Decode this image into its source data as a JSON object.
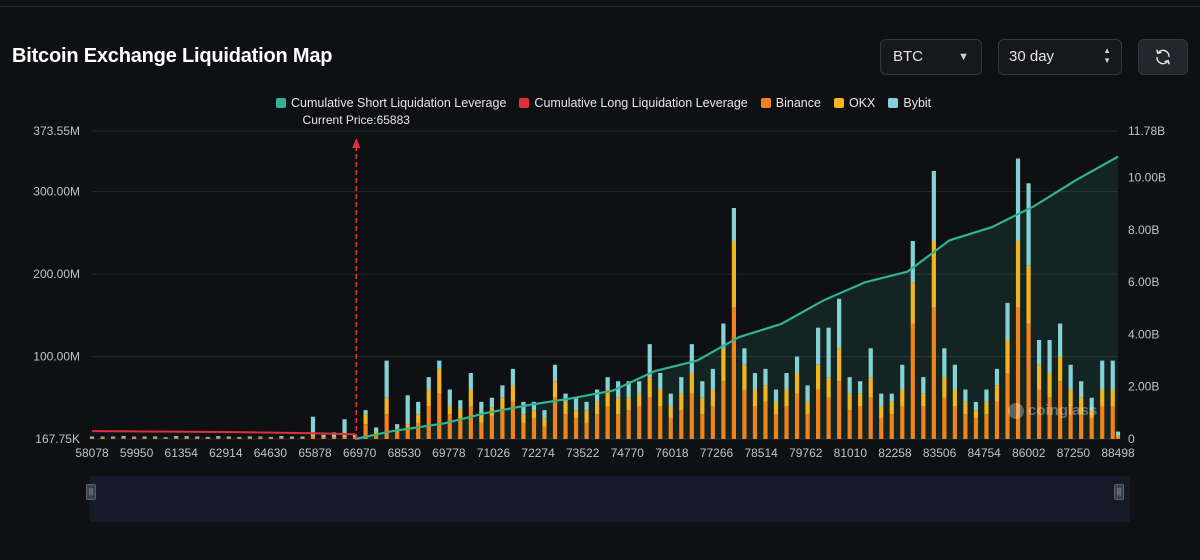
{
  "header": {
    "title": "Bitcoin Exchange Liquidation Map",
    "coin_select": "BTC",
    "range_select": "30 day",
    "refresh_icon": "refresh-icon"
  },
  "watermark": "coinglass",
  "colors": {
    "short": "#2fb390",
    "long": "#e0303b",
    "binance": "#f0841a",
    "okx": "#f2b51e",
    "bybit": "#84d2d6",
    "background": "#0f1013"
  },
  "chart_data": {
    "type": "bar",
    "title": "Bitcoin Exchange Liquidation Map",
    "current_price": 65883,
    "current_price_label": "Current Price:65883",
    "legend": [
      {
        "name": "Cumulative Short Liquidation Leverage",
        "color": "#2fb390"
      },
      {
        "name": "Cumulative Long Liquidation Leverage",
        "color": "#e0303b"
      },
      {
        "name": "Binance",
        "color": "#f0841a"
      },
      {
        "name": "OKX",
        "color": "#f2b51e"
      },
      {
        "name": "Bybit",
        "color": "#84d2d6"
      }
    ],
    "x_range": [
      58078,
      88498
    ],
    "x_tick_labels": [
      "58078",
      "59950",
      "61354",
      "62914",
      "64630",
      "65878",
      "66970",
      "68530",
      "69778",
      "71026",
      "72274",
      "73522",
      "74770",
      "76018",
      "77266",
      "78514",
      "79762",
      "81010",
      "82258",
      "83506",
      "84754",
      "86002",
      "87250",
      "88498"
    ],
    "y_left_range": [
      0.16775,
      373.55
    ],
    "y_left_ticks": [
      {
        "value": 0.16775,
        "label": "167.75K"
      },
      {
        "value": 100,
        "label": "100.00M"
      },
      {
        "value": 200,
        "label": "200.00M"
      },
      {
        "value": 300,
        "label": "300.00M"
      },
      {
        "value": 373.55,
        "label": "373.55M"
      }
    ],
    "y_right_range": [
      0,
      11.78
    ],
    "y_right_ticks": [
      {
        "value": 0,
        "label": "0"
      },
      {
        "value": 2,
        "label": "2.00B"
      },
      {
        "value": 4,
        "label": "4.00B"
      },
      {
        "value": 6,
        "label": "6.00B"
      },
      {
        "value": 8,
        "label": "8.00B"
      },
      {
        "value": 10,
        "label": "10.00B"
      },
      {
        "value": 11.78,
        "label": "11.78B"
      }
    ],
    "long_cumulative": [
      {
        "price": 58078,
        "value": 0.3
      },
      {
        "price": 62000,
        "value": 0.27
      },
      {
        "price": 64630,
        "value": 0.22
      },
      {
        "price": 65878,
        "value": 0.18
      }
    ],
    "short_cumulative": [
      {
        "price": 65883,
        "value": 0.0
      },
      {
        "price": 66970,
        "value": 0.3
      },
      {
        "price": 68530,
        "value": 0.6
      },
      {
        "price": 69778,
        "value": 1.0
      },
      {
        "price": 71026,
        "value": 1.3
      },
      {
        "price": 72274,
        "value": 1.55
      },
      {
        "price": 73522,
        "value": 1.85
      },
      {
        "price": 74770,
        "value": 2.6
      },
      {
        "price": 76018,
        "value": 3.0
      },
      {
        "price": 77266,
        "value": 3.9
      },
      {
        "price": 78514,
        "value": 4.4
      },
      {
        "price": 79762,
        "value": 5.3
      },
      {
        "price": 81010,
        "value": 6.0
      },
      {
        "price": 82258,
        "value": 6.4
      },
      {
        "price": 83506,
        "value": 7.6
      },
      {
        "price": 84754,
        "value": 8.1
      },
      {
        "price": 86002,
        "value": 8.9
      },
      {
        "price": 87250,
        "value": 9.9
      },
      {
        "price": 88498,
        "value": 10.8
      }
    ],
    "bars": [
      {
        "price": 58078,
        "binance": 1,
        "okx": 0.5,
        "bybit": 1.5
      },
      {
        "price": 58390,
        "binance": 1.5,
        "okx": 0.5,
        "bybit": 1
      },
      {
        "price": 58702,
        "binance": 1,
        "okx": 1,
        "bybit": 1
      },
      {
        "price": 59014,
        "binance": 1,
        "okx": 0.5,
        "bybit": 2
      },
      {
        "price": 59326,
        "binance": 1.5,
        "okx": 0.5,
        "bybit": 1
      },
      {
        "price": 59638,
        "binance": 1,
        "okx": 0.5,
        "bybit": 1.5
      },
      {
        "price": 59950,
        "binance": 1,
        "okx": 1,
        "bybit": 1
      },
      {
        "price": 60262,
        "binance": 0.5,
        "okx": 0.5,
        "bybit": 1
      },
      {
        "price": 60574,
        "binance": 1,
        "okx": 0.5,
        "bybit": 2
      },
      {
        "price": 60886,
        "binance": 1.5,
        "okx": 1,
        "bybit": 1
      },
      {
        "price": 61198,
        "binance": 1,
        "okx": 0.5,
        "bybit": 1.5
      },
      {
        "price": 61510,
        "binance": 1,
        "okx": 0.5,
        "bybit": 1
      },
      {
        "price": 61822,
        "binance": 1,
        "okx": 0.5,
        "bybit": 2
      },
      {
        "price": 62134,
        "binance": 1,
        "okx": 1,
        "bybit": 1
      },
      {
        "price": 62446,
        "binance": 1,
        "okx": 0.5,
        "bybit": 1
      },
      {
        "price": 62758,
        "binance": 1,
        "okx": 0.5,
        "bybit": 1.5
      },
      {
        "price": 63070,
        "binance": 1.5,
        "okx": 0.5,
        "bybit": 1
      },
      {
        "price": 63382,
        "binance": 1,
        "okx": 0.5,
        "bybit": 1
      },
      {
        "price": 63694,
        "binance": 1,
        "okx": 0.5,
        "bybit": 2
      },
      {
        "price": 64006,
        "binance": 1,
        "okx": 1,
        "bybit": 1
      },
      {
        "price": 64318,
        "binance": 1,
        "okx": 0.5,
        "bybit": 1.5
      },
      {
        "price": 64630,
        "binance": 3,
        "okx": 2,
        "bybit": 22
      },
      {
        "price": 64942,
        "binance": 2,
        "okx": 1,
        "bybit": 2
      },
      {
        "price": 65254,
        "binance": 2,
        "okx": 1,
        "bybit": 5
      },
      {
        "price": 65566,
        "binance": 2,
        "okx": 2,
        "bybit": 20
      },
      {
        "price": 65878,
        "binance": 2,
        "okx": 1,
        "bybit": 2
      },
      {
        "price": 66190,
        "binance": 18,
        "okx": 12,
        "bybit": 5
      },
      {
        "price": 66502,
        "binance": 6,
        "okx": 3,
        "bybit": 5
      },
      {
        "price": 66814,
        "binance": 30,
        "okx": 20,
        "bybit": 45
      },
      {
        "price": 67126,
        "binance": 8,
        "okx": 5,
        "bybit": 5
      },
      {
        "price": 67438,
        "binance": 12,
        "okx": 6,
        "bybit": 35
      },
      {
        "price": 67750,
        "binance": 20,
        "okx": 10,
        "bybit": 15
      },
      {
        "price": 68062,
        "binance": 40,
        "okx": 20,
        "bybit": 15
      },
      {
        "price": 68374,
        "binance": 55,
        "okx": 30,
        "bybit": 10
      },
      {
        "price": 68686,
        "binance": 30,
        "okx": 10,
        "bybit": 20
      },
      {
        "price": 68998,
        "binance": 25,
        "okx": 12,
        "bybit": 10
      },
      {
        "price": 69310,
        "binance": 40,
        "okx": 20,
        "bybit": 20
      },
      {
        "price": 69622,
        "binance": 20,
        "okx": 10,
        "bybit": 15
      },
      {
        "price": 69934,
        "binance": 28,
        "okx": 10,
        "bybit": 12
      },
      {
        "price": 70246,
        "binance": 35,
        "okx": 15,
        "bybit": 15
      },
      {
        "price": 70558,
        "binance": 45,
        "okx": 20,
        "bybit": 20
      },
      {
        "price": 70870,
        "binance": 20,
        "okx": 10,
        "bybit": 15
      },
      {
        "price": 71182,
        "binance": 25,
        "okx": 10,
        "bybit": 10
      },
      {
        "price": 71494,
        "binance": 15,
        "okx": 10,
        "bybit": 10
      },
      {
        "price": 71806,
        "binance": 50,
        "okx": 20,
        "bybit": 20
      },
      {
        "price": 72118,
        "binance": 30,
        "okx": 15,
        "bybit": 10
      },
      {
        "price": 72430,
        "binance": 25,
        "okx": 10,
        "bybit": 15
      },
      {
        "price": 72742,
        "binance": 20,
        "okx": 15,
        "bybit": 10
      },
      {
        "price": 73054,
        "binance": 30,
        "okx": 15,
        "bybit": 15
      },
      {
        "price": 73366,
        "binance": 40,
        "okx": 20,
        "bybit": 15
      },
      {
        "price": 73678,
        "binance": 30,
        "okx": 20,
        "bybit": 20
      },
      {
        "price": 73990,
        "binance": 35,
        "okx": 15,
        "bybit": 20
      },
      {
        "price": 74302,
        "binance": 40,
        "okx": 15,
        "bybit": 15
      },
      {
        "price": 74614,
        "binance": 50,
        "okx": 25,
        "bybit": 40
      },
      {
        "price": 74926,
        "binance": 40,
        "okx": 20,
        "bybit": 20
      },
      {
        "price": 75238,
        "binance": 25,
        "okx": 15,
        "bybit": 15
      },
      {
        "price": 75550,
        "binance": 35,
        "okx": 20,
        "bybit": 20
      },
      {
        "price": 75862,
        "binance": 55,
        "okx": 25,
        "bybit": 35
      },
      {
        "price": 76174,
        "binance": 30,
        "okx": 20,
        "bybit": 20
      },
      {
        "price": 76486,
        "binance": 40,
        "okx": 20,
        "bybit": 25
      },
      {
        "price": 76798,
        "binance": 70,
        "okx": 40,
        "bybit": 30
      },
      {
        "price": 77110,
        "binance": 160,
        "okx": 80,
        "bybit": 40
      },
      {
        "price": 77422,
        "binance": 60,
        "okx": 30,
        "bybit": 20
      },
      {
        "price": 77734,
        "binance": 40,
        "okx": 20,
        "bybit": 20
      },
      {
        "price": 78046,
        "binance": 45,
        "okx": 20,
        "bybit": 20
      },
      {
        "price": 78358,
        "binance": 30,
        "okx": 15,
        "bybit": 15
      },
      {
        "price": 78670,
        "binance": 40,
        "okx": 20,
        "bybit": 20
      },
      {
        "price": 78982,
        "binance": 55,
        "okx": 25,
        "bybit": 20
      },
      {
        "price": 79294,
        "binance": 30,
        "okx": 15,
        "bybit": 20
      },
      {
        "price": 79606,
        "binance": 60,
        "okx": 30,
        "bybit": 45
      },
      {
        "price": 79918,
        "binance": 50,
        "okx": 25,
        "bybit": 60
      },
      {
        "price": 80230,
        "binance": 70,
        "okx": 40,
        "bybit": 60
      },
      {
        "price": 80542,
        "binance": 35,
        "okx": 20,
        "bybit": 20
      },
      {
        "price": 80854,
        "binance": 40,
        "okx": 15,
        "bybit": 15
      },
      {
        "price": 81166,
        "binance": 50,
        "okx": 25,
        "bybit": 35
      },
      {
        "price": 81478,
        "binance": 25,
        "okx": 15,
        "bybit": 15
      },
      {
        "price": 81790,
        "binance": 30,
        "okx": 15,
        "bybit": 10
      },
      {
        "price": 82102,
        "binance": 40,
        "okx": 20,
        "bybit": 30
      },
      {
        "price": 82414,
        "binance": 140,
        "okx": 50,
        "bybit": 50
      },
      {
        "price": 82726,
        "binance": 40,
        "okx": 15,
        "bybit": 20
      },
      {
        "price": 83038,
        "binance": 160,
        "okx": 80,
        "bybit": 85
      },
      {
        "price": 83350,
        "binance": 50,
        "okx": 25,
        "bybit": 35
      },
      {
        "price": 83662,
        "binance": 40,
        "okx": 20,
        "bybit": 30
      },
      {
        "price": 83974,
        "binance": 30,
        "okx": 15,
        "bybit": 15
      },
      {
        "price": 84286,
        "binance": 25,
        "okx": 10,
        "bybit": 10
      },
      {
        "price": 84598,
        "binance": 30,
        "okx": 15,
        "bybit": 15
      },
      {
        "price": 84910,
        "binance": 45,
        "okx": 20,
        "bybit": 20
      },
      {
        "price": 85222,
        "binance": 80,
        "okx": 40,
        "bybit": 45
      },
      {
        "price": 85534,
        "binance": 160,
        "okx": 80,
        "bybit": 100
      },
      {
        "price": 85846,
        "binance": 140,
        "okx": 70,
        "bybit": 100
      },
      {
        "price": 86158,
        "binance": 60,
        "okx": 30,
        "bybit": 30
      },
      {
        "price": 86470,
        "binance": 50,
        "okx": 30,
        "bybit": 40
      },
      {
        "price": 86782,
        "binance": 70,
        "okx": 30,
        "bybit": 40
      },
      {
        "price": 87094,
        "binance": 40,
        "okx": 20,
        "bybit": 30
      },
      {
        "price": 87406,
        "binance": 30,
        "okx": 20,
        "bybit": 20
      },
      {
        "price": 87718,
        "binance": 25,
        "okx": 10,
        "bybit": 15
      },
      {
        "price": 88030,
        "binance": 40,
        "okx": 20,
        "bybit": 35
      },
      {
        "price": 88342,
        "binance": 40,
        "okx": 20,
        "bybit": 35
      },
      {
        "price": 88498,
        "binance": 3,
        "okx": 1,
        "bybit": 5
      }
    ]
  }
}
